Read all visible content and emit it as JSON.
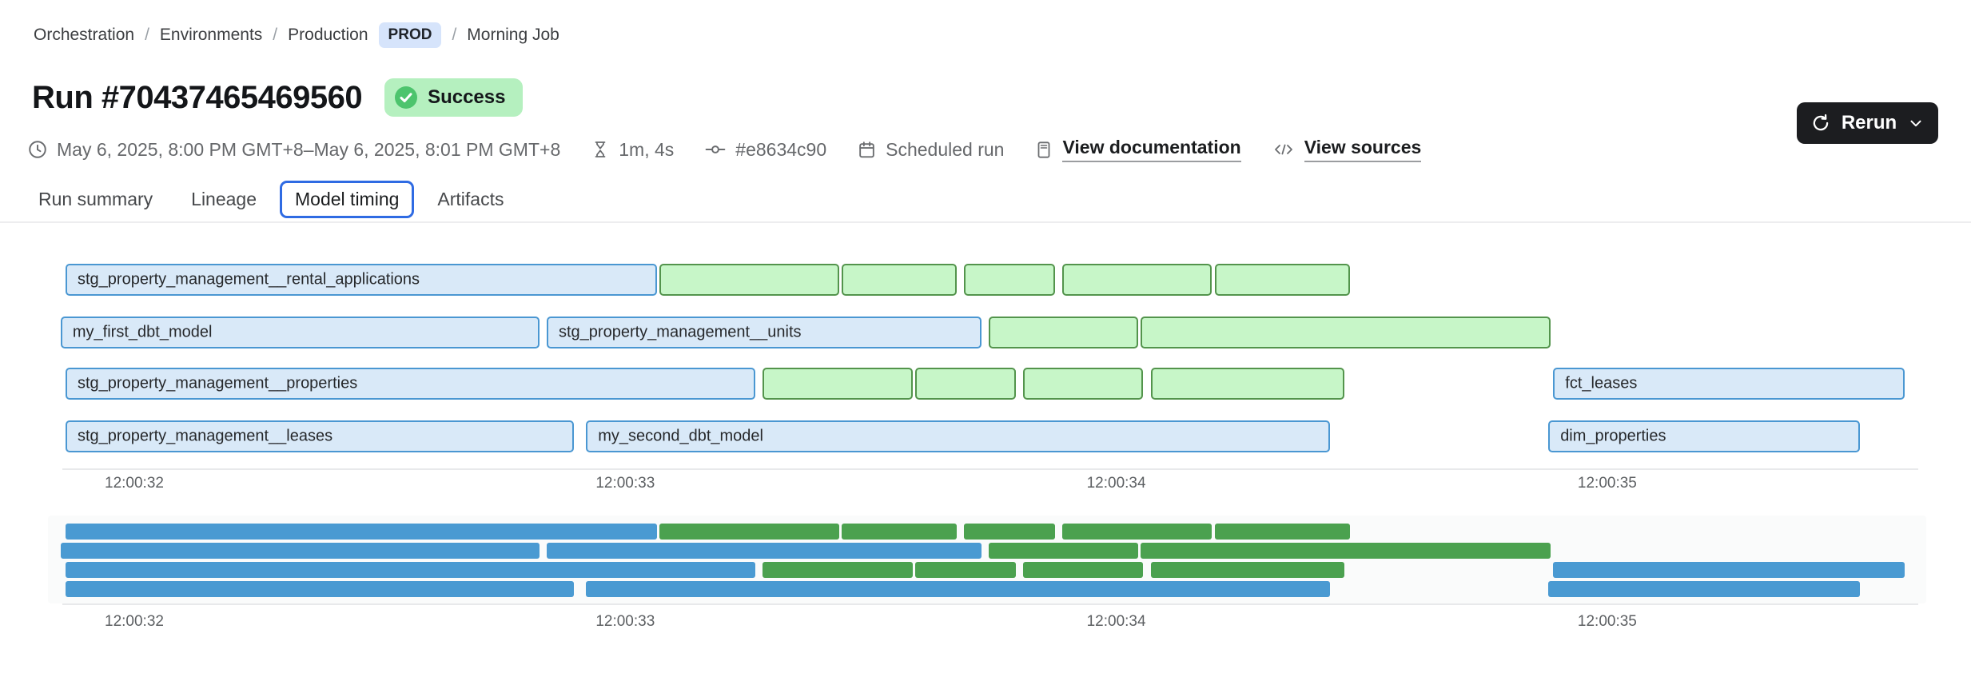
{
  "breadcrumb": {
    "separator": "/",
    "items": [
      "Orchestration",
      "Environments",
      "Production"
    ],
    "env_badge": "PROD",
    "current": "Morning Job"
  },
  "header": {
    "title": "Run #70437465469560",
    "status": "Success"
  },
  "meta": {
    "time_range": "May 6, 2025, 8:00 PM GMT+8–May 6, 2025, 8:01 PM GMT+8",
    "duration": "1m, 4s",
    "commit_hash": "#e8634c90",
    "trigger": "Scheduled run",
    "documentation_link": "View documentation",
    "sources_link": "View sources"
  },
  "actions": {
    "rerun": "Rerun"
  },
  "tabs": [
    {
      "label": "Run summary",
      "active": false
    },
    {
      "label": "Lineage",
      "active": false
    },
    {
      "label": "Model timing",
      "active": true
    },
    {
      "label": "Artifacts",
      "active": false
    }
  ],
  "colors": {
    "accent": "#2f6be3",
    "prod_badge_bg": "#d6e4fb",
    "success_bg": "#b5f0bf",
    "success_icon": "#4dc46d",
    "rerun_bg": "#1c1d20",
    "bar_blue_fill": "#d9e9f8",
    "bar_blue_border": "#4a97d2",
    "bar_green_fill": "#c7f6c8",
    "bar_green_border": "#53944c",
    "mini_blue": "#4a9ad2",
    "mini_green": "#4ba14f"
  },
  "chart_data": {
    "type": "gantt",
    "title": "Model timing",
    "views": [
      "detail",
      "minimap"
    ],
    "bar_types": {
      "blue": "model",
      "green": "test"
    },
    "x_axis": {
      "grid": false,
      "ticks": [
        {
          "label": "12:00:32",
          "second": 32
        },
        {
          "label": "12:00:33",
          "second": 33
        },
        {
          "label": "12:00:34",
          "second": 34
        },
        {
          "label": "12:00:35",
          "second": 35
        }
      ]
    },
    "rows": [
      {
        "segments": [
          {
            "label": "stg_property_management__rental_applications",
            "type": "blue",
            "start": 31.86,
            "end": 33.07
          },
          {
            "label": null,
            "type": "green",
            "start": 33.07,
            "end": 33.44
          },
          {
            "label": null,
            "type": "green",
            "start": 33.44,
            "end": 33.68
          },
          {
            "label": null,
            "type": "green",
            "start": 33.69,
            "end": 33.88
          },
          {
            "label": null,
            "type": "green",
            "start": 33.89,
            "end": 34.2
          },
          {
            "label": null,
            "type": "green",
            "start": 34.2,
            "end": 34.48
          }
        ]
      },
      {
        "segments": [
          {
            "label": "my_first_dbt_model",
            "type": "blue",
            "start": 31.85,
            "end": 32.83
          },
          {
            "label": "stg_property_management__units",
            "type": "blue",
            "start": 32.84,
            "end": 33.73
          },
          {
            "label": null,
            "type": "green",
            "start": 33.74,
            "end": 34.05
          },
          {
            "label": null,
            "type": "green",
            "start": 34.05,
            "end": 34.89
          }
        ]
      },
      {
        "segments": [
          {
            "label": "stg_property_management__properties",
            "type": "blue",
            "start": 31.86,
            "end": 33.27
          },
          {
            "label": null,
            "type": "green",
            "start": 33.28,
            "end": 33.59
          },
          {
            "label": null,
            "type": "green",
            "start": 33.59,
            "end": 33.8
          },
          {
            "label": null,
            "type": "green",
            "start": 33.81,
            "end": 34.06
          },
          {
            "label": null,
            "type": "green",
            "start": 34.07,
            "end": 34.47
          },
          {
            "label": "fct_leases",
            "type": "blue",
            "start": 34.89,
            "end": 35.61
          }
        ]
      },
      {
        "segments": [
          {
            "label": "stg_property_management__leases",
            "type": "blue",
            "start": 31.86,
            "end": 32.9
          },
          {
            "label": "my_second_dbt_model",
            "type": "blue",
            "start": 32.92,
            "end": 34.44
          },
          {
            "label": "dim_properties",
            "type": "blue",
            "start": 34.88,
            "end": 35.52
          }
        ]
      }
    ]
  }
}
